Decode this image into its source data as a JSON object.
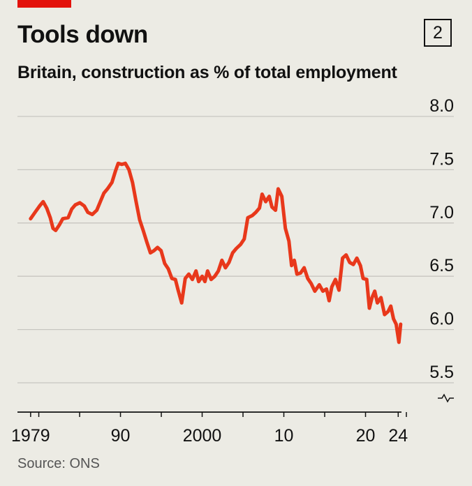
{
  "header": {
    "title": "Tools down",
    "chart_number": "2",
    "subtitle": "Britain, construction as % of total employment",
    "source": "Source: ONS"
  },
  "colors": {
    "accent": "#e3120b",
    "line": "#e8381b",
    "background": "#ecebe4",
    "grid": "#c7c6c0"
  },
  "chart_data": {
    "type": "line",
    "title": "Tools down",
    "subtitle": "Britain, construction as % of total employment",
    "ylim": [
      5.5,
      8.0
    ],
    "y_ticks": [
      {
        "value": 8.0,
        "label": "8.0"
      },
      {
        "value": 7.5,
        "label": "7.5"
      },
      {
        "value": 7.0,
        "label": "7.0"
      },
      {
        "value": 6.5,
        "label": "6.5"
      },
      {
        "value": 6.0,
        "label": "6.0"
      },
      {
        "value": 5.5,
        "label": "5.5"
      }
    ],
    "x_tick_labels": [
      {
        "value": 1979,
        "label": "1979"
      },
      {
        "value": 1990,
        "label": "90"
      },
      {
        "value": 2000,
        "label": "2000"
      },
      {
        "value": 2010,
        "label": "10"
      },
      {
        "value": 2020,
        "label": "20"
      },
      {
        "value": 2024,
        "label": "24"
      }
    ],
    "y_axis_break": true,
    "grid": true,
    "series": [
      {
        "values": [
          [
            1979.0,
            7.04
          ],
          [
            1979.5,
            7.1
          ],
          [
            1980.0,
            7.16
          ],
          [
            1980.4,
            7.2
          ],
          [
            1980.8,
            7.14
          ],
          [
            1981.2,
            7.05
          ],
          [
            1981.5,
            6.95
          ],
          [
            1981.8,
            6.93
          ],
          [
            1982.2,
            6.98
          ],
          [
            1982.6,
            7.04
          ],
          [
            1983.2,
            7.05
          ],
          [
            1983.6,
            7.13
          ],
          [
            1984.0,
            7.17
          ],
          [
            1984.5,
            7.19
          ],
          [
            1985.0,
            7.16
          ],
          [
            1985.4,
            7.1
          ],
          [
            1985.9,
            7.08
          ],
          [
            1986.4,
            7.12
          ],
          [
            1986.8,
            7.2
          ],
          [
            1987.2,
            7.28
          ],
          [
            1987.6,
            7.32
          ],
          [
            1988.1,
            7.38
          ],
          [
            1988.5,
            7.49
          ],
          [
            1988.8,
            7.56
          ],
          [
            1989.2,
            7.55
          ],
          [
            1989.6,
            7.56
          ],
          [
            1990.0,
            7.5
          ],
          [
            1990.4,
            7.38
          ],
          [
            1990.8,
            7.2
          ],
          [
            1991.2,
            7.03
          ],
          [
            1991.6,
            6.93
          ],
          [
            1992.0,
            6.82
          ],
          [
            1992.4,
            6.72
          ],
          [
            1992.8,
            6.74
          ],
          [
            1993.2,
            6.77
          ],
          [
            1993.6,
            6.74
          ],
          [
            1994.0,
            6.62
          ],
          [
            1994.4,
            6.57
          ],
          [
            1994.8,
            6.48
          ],
          [
            1995.2,
            6.47
          ],
          [
            1995.5,
            6.37
          ],
          [
            1995.9,
            6.25
          ],
          [
            1996.3,
            6.48
          ],
          [
            1996.7,
            6.52
          ],
          [
            1997.1,
            6.47
          ],
          [
            1997.5,
            6.55
          ],
          [
            1997.8,
            6.45
          ],
          [
            1998.2,
            6.5
          ],
          [
            1998.5,
            6.45
          ],
          [
            1998.8,
            6.55
          ],
          [
            1999.2,
            6.47
          ],
          [
            1999.6,
            6.5
          ],
          [
            2000.0,
            6.55
          ],
          [
            2000.4,
            6.65
          ],
          [
            2000.8,
            6.58
          ],
          [
            2001.2,
            6.63
          ],
          [
            2001.6,
            6.72
          ],
          [
            2002.0,
            6.76
          ],
          [
            2002.5,
            6.8
          ],
          [
            2002.9,
            6.85
          ],
          [
            2003.3,
            7.05
          ],
          [
            2003.8,
            7.07
          ],
          [
            2004.2,
            7.1
          ],
          [
            2004.6,
            7.14
          ],
          [
            2004.9,
            7.27
          ],
          [
            2005.3,
            7.2
          ],
          [
            2005.7,
            7.25
          ],
          [
            2006.0,
            7.15
          ],
          [
            2006.4,
            7.12
          ],
          [
            2006.7,
            7.32
          ],
          [
            2007.1,
            7.25
          ],
          [
            2007.5,
            6.95
          ],
          [
            2007.9,
            6.83
          ],
          [
            2008.2,
            6.6
          ],
          [
            2008.5,
            6.65
          ],
          [
            2008.8,
            6.52
          ],
          [
            2009.2,
            6.53
          ],
          [
            2009.6,
            6.58
          ],
          [
            2010.0,
            6.48
          ],
          [
            2010.4,
            6.43
          ],
          [
            2010.8,
            6.36
          ],
          [
            2011.3,
            6.42
          ],
          [
            2011.7,
            6.36
          ],
          [
            2012.1,
            6.38
          ],
          [
            2012.4,
            6.27
          ],
          [
            2012.7,
            6.4
          ],
          [
            2013.1,
            6.47
          ],
          [
            2013.5,
            6.37
          ],
          [
            2013.9,
            6.67
          ],
          [
            2014.3,
            6.7
          ],
          [
            2014.7,
            6.63
          ],
          [
            2015.1,
            6.61
          ],
          [
            2015.5,
            6.67
          ],
          [
            2015.9,
            6.6
          ],
          [
            2016.2,
            6.48
          ],
          [
            2016.6,
            6.47
          ],
          [
            2016.9,
            6.2
          ],
          [
            2017.2,
            6.3
          ],
          [
            2017.5,
            6.36
          ],
          [
            2017.8,
            6.25
          ],
          [
            2018.2,
            6.3
          ],
          [
            2018.6,
            6.14
          ],
          [
            2019.0,
            6.17
          ],
          [
            2019.3,
            6.22
          ],
          [
            2019.6,
            6.1
          ],
          [
            2019.9,
            6.05
          ],
          [
            2020.2,
            5.88
          ],
          [
            2020.4,
            6.05
          ]
        ]
      }
    ]
  }
}
